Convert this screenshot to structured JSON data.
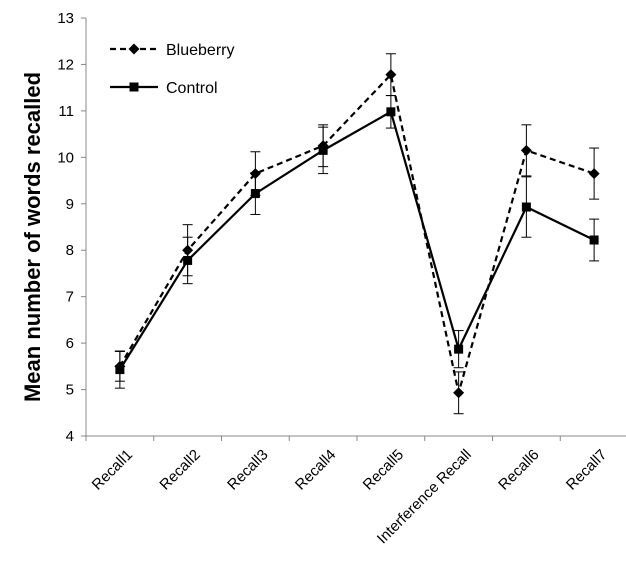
{
  "chart_data": {
    "type": "line",
    "title": "",
    "xlabel": "",
    "ylabel": "Mean number of words recalled",
    "categories": [
      "Recall1",
      "Recall2",
      "Recall3",
      "Recall4",
      "Recall5",
      "Interference Recall",
      "Recall6",
      "Recall7"
    ],
    "ylim": [
      4,
      13
    ],
    "yticks": [
      4,
      5,
      6,
      7,
      8,
      9,
      10,
      11,
      12,
      13
    ],
    "grid": false,
    "legend": "top-left",
    "series": [
      {
        "name": "Blueberry",
        "line_style": "dashed",
        "marker": "diamond",
        "color": "#000000",
        "values": [
          5.5,
          8.0,
          9.65,
          10.25,
          11.78,
          4.93,
          10.15,
          9.65
        ],
        "error": [
          0.32,
          0.55,
          0.47,
          0.45,
          0.45,
          0.45,
          0.55,
          0.55
        ]
      },
      {
        "name": "Control",
        "line_style": "solid",
        "marker": "square",
        "color": "#000000",
        "values": [
          5.43,
          7.78,
          9.22,
          10.15,
          10.98,
          5.87,
          8.93,
          8.22
        ],
        "error": [
          0.4,
          0.5,
          0.45,
          0.5,
          0.35,
          0.4,
          0.65,
          0.45
        ]
      }
    ]
  }
}
